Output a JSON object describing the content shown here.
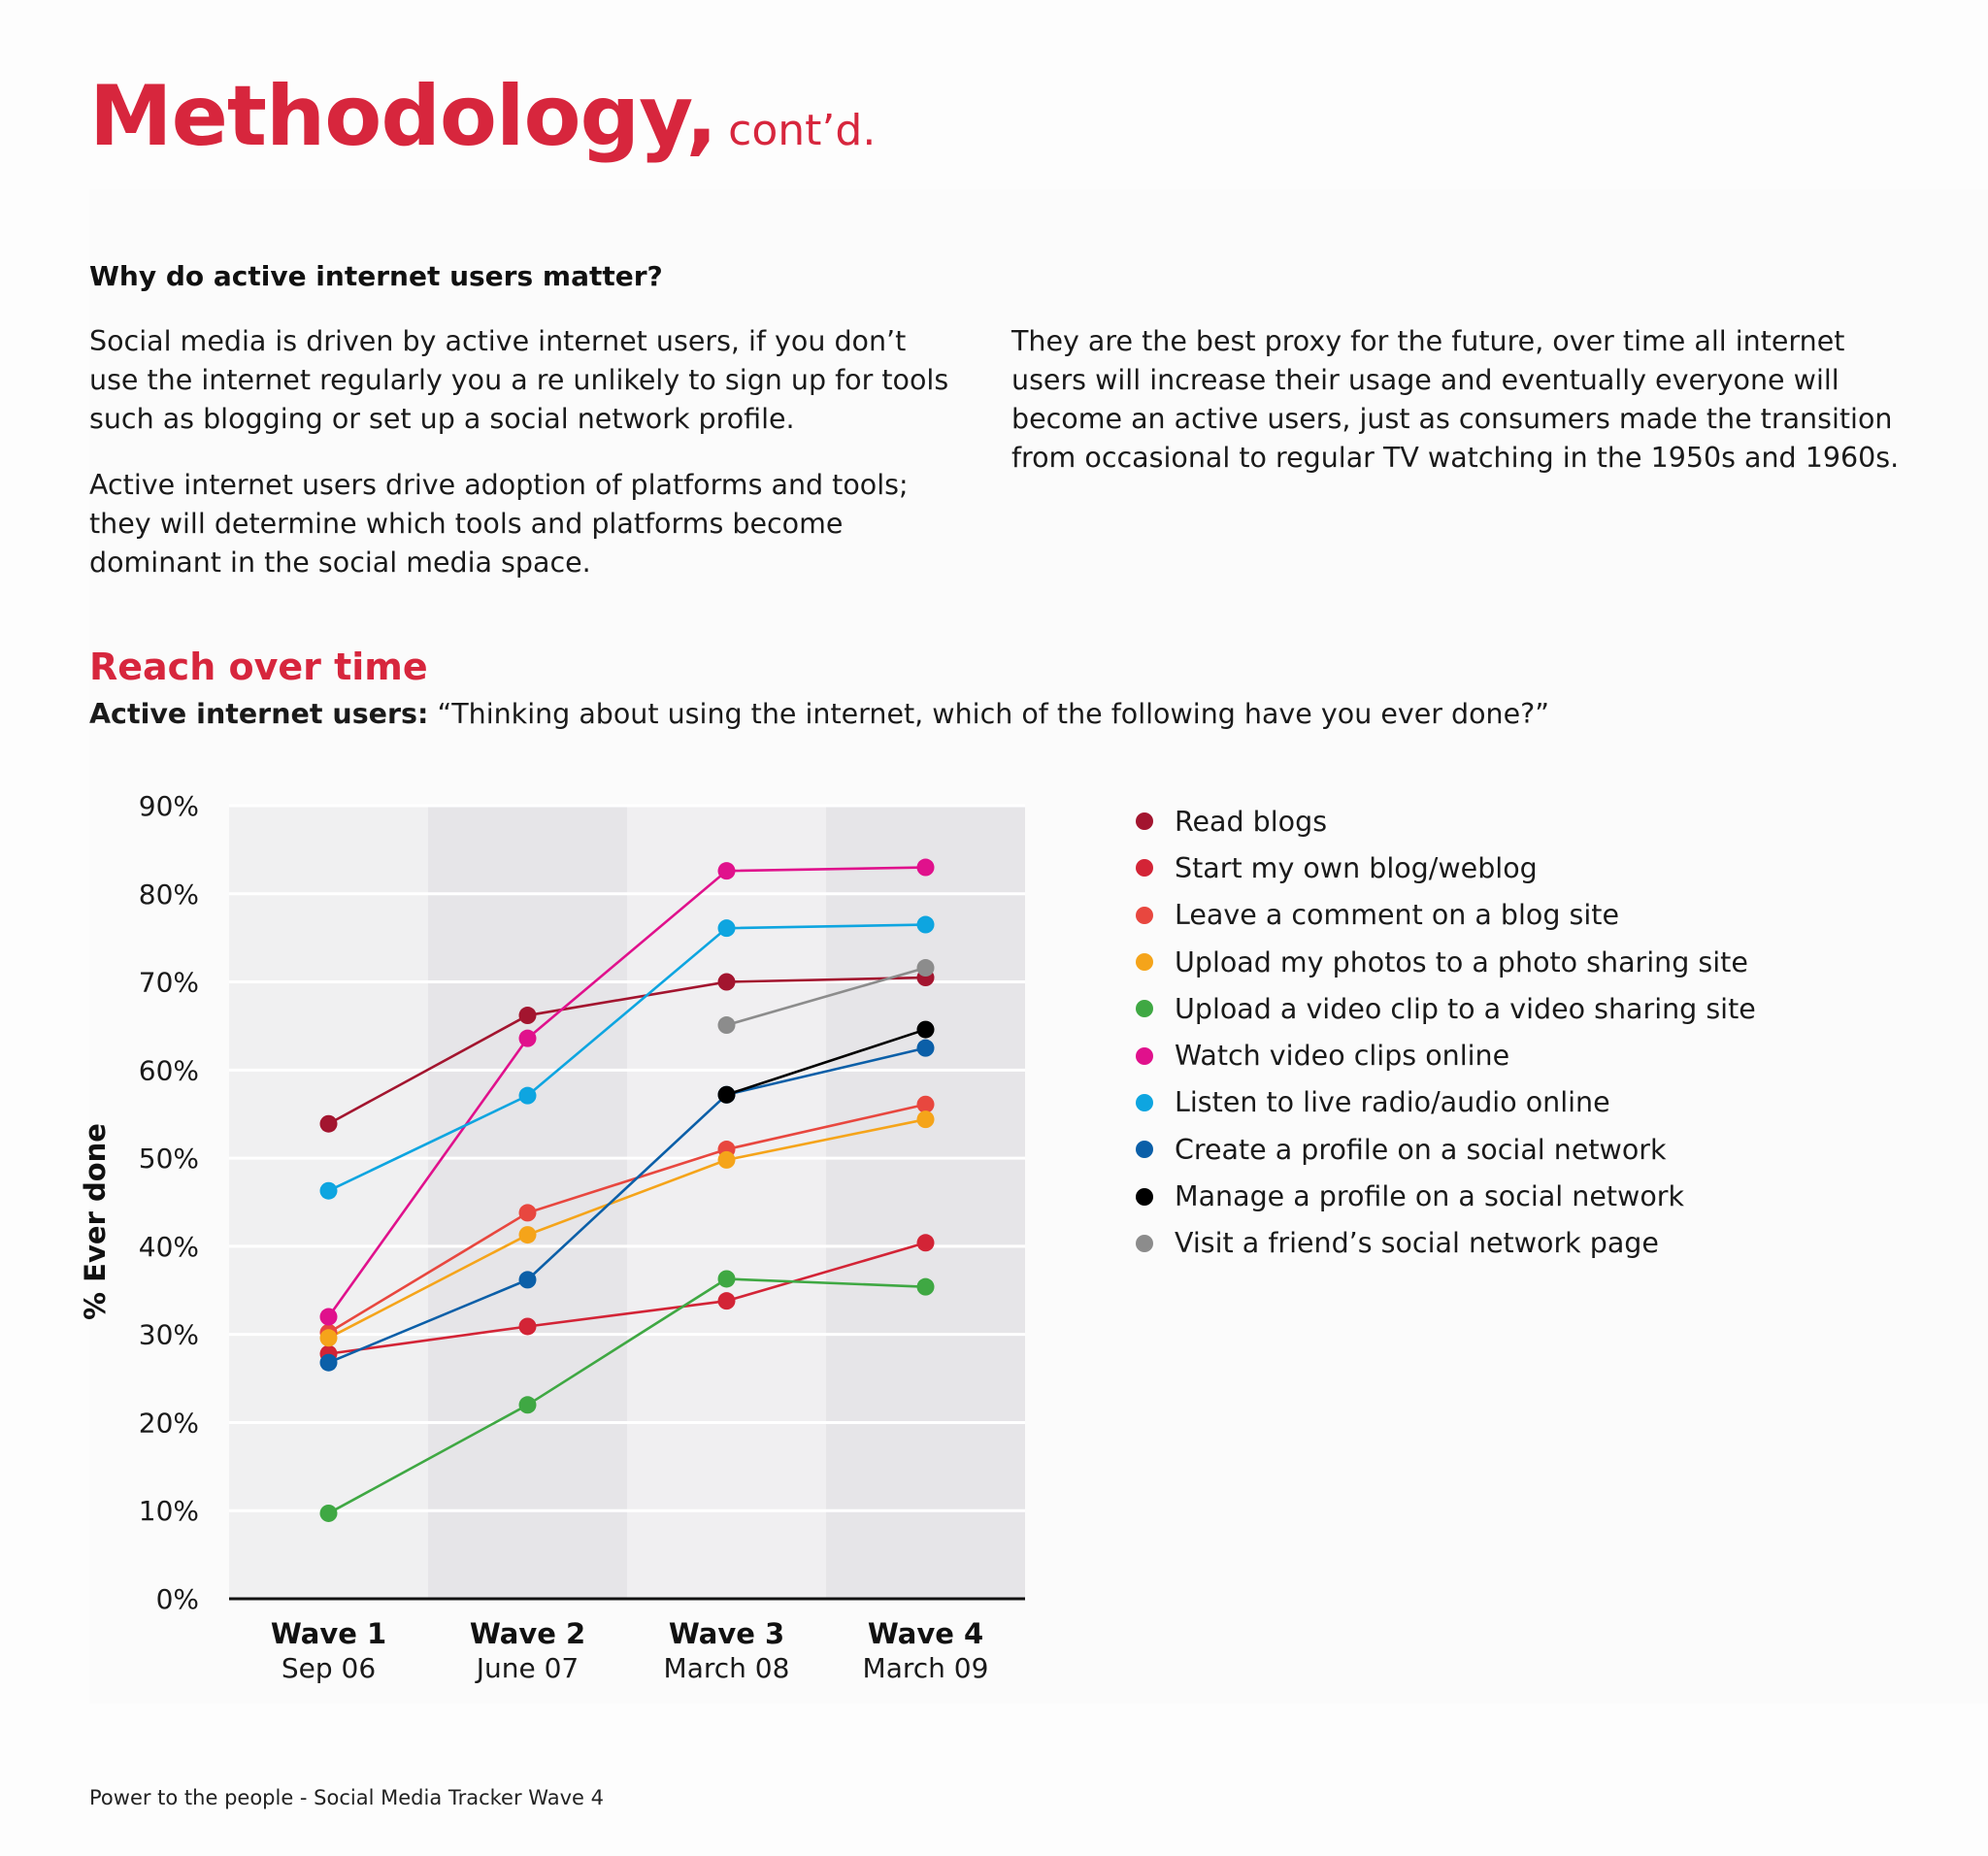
{
  "header": {
    "title": "Methodology,",
    "title_suffix": "cont’d."
  },
  "intro": {
    "question": "Why do active internet users matter?",
    "paragraph_1": "Social media is driven by active internet users, if you don’t use the internet regularly you a re unlikely to sign up for tools such as blogging or set up a social network profile.",
    "paragraph_2": "Active internet users drive adoption of platforms and tools; they will determine which tools and platforms become dominant in the social media space.",
    "paragraph_3": "They are the best proxy for the future, over time all internet users will increase their usage and eventually everyone will become an active users, just as consumers made the transition from occasional to regular TV watching in the 1950s and 1960s."
  },
  "section": {
    "title": "Reach over time",
    "subtitle_bold": "Active internet users:",
    "subtitle_text": " “Thinking about using the internet, which of the following have you ever done?”"
  },
  "footer": {
    "text": "Power to the people - Social Media Tracker Wave 4"
  },
  "chart_data": {
    "type": "line",
    "ylabel": "% Ever done",
    "ylim": [
      0,
      90
    ],
    "y_ticks": [
      "0%",
      "10%",
      "20%",
      "30%",
      "40%",
      "50%",
      "60%",
      "70%",
      "80%",
      "90%"
    ],
    "categories": [
      "Wave 1",
      "Wave 2",
      "Wave 3",
      "Wave 4"
    ],
    "category_sublabels": [
      "Sep 06",
      "June 07",
      "March 08",
      "March 09"
    ],
    "grid": "horizontal",
    "alternating_column_bands": true,
    "legend_position": "right",
    "series": [
      {
        "name": "Read blogs",
        "color": "#a3152f",
        "values": [
          53.9,
          66.2,
          70.0,
          70.5
        ]
      },
      {
        "name": "Start my own blog/weblog",
        "color": "#d32436",
        "values": [
          27.8,
          30.9,
          33.8,
          40.4
        ]
      },
      {
        "name": "Leave a comment on a blog site",
        "color": "#e8473f",
        "values": [
          30.2,
          43.8,
          51.0,
          56.1
        ]
      },
      {
        "name": "Upload my photos to a photo sharing site",
        "color": "#f5a41a",
        "values": [
          29.6,
          41.3,
          49.8,
          54.4
        ]
      },
      {
        "name": "Upload a video clip to a video sharing site",
        "color": "#3fa843",
        "values": [
          9.7,
          22.0,
          36.3,
          35.4
        ]
      },
      {
        "name": "Watch video clips online",
        "color": "#e0118c",
        "values": [
          32.0,
          63.6,
          82.6,
          83.0
        ]
      },
      {
        "name": "Listen to live radio/audio online",
        "color": "#0ea5e0",
        "values": [
          46.3,
          57.1,
          76.1,
          76.5
        ]
      },
      {
        "name": "Create a profile on a social network",
        "color": "#0b5fa8",
        "values": [
          26.8,
          36.2,
          57.2,
          62.5
        ]
      },
      {
        "name": "Manage a profile on a social network",
        "color": "#000000",
        "values": [
          null,
          null,
          57.2,
          64.6
        ]
      },
      {
        "name": "Visit a friend’s social network page",
        "color": "#8c8c8c",
        "values": [
          null,
          null,
          65.1,
          71.6
        ]
      }
    ]
  }
}
